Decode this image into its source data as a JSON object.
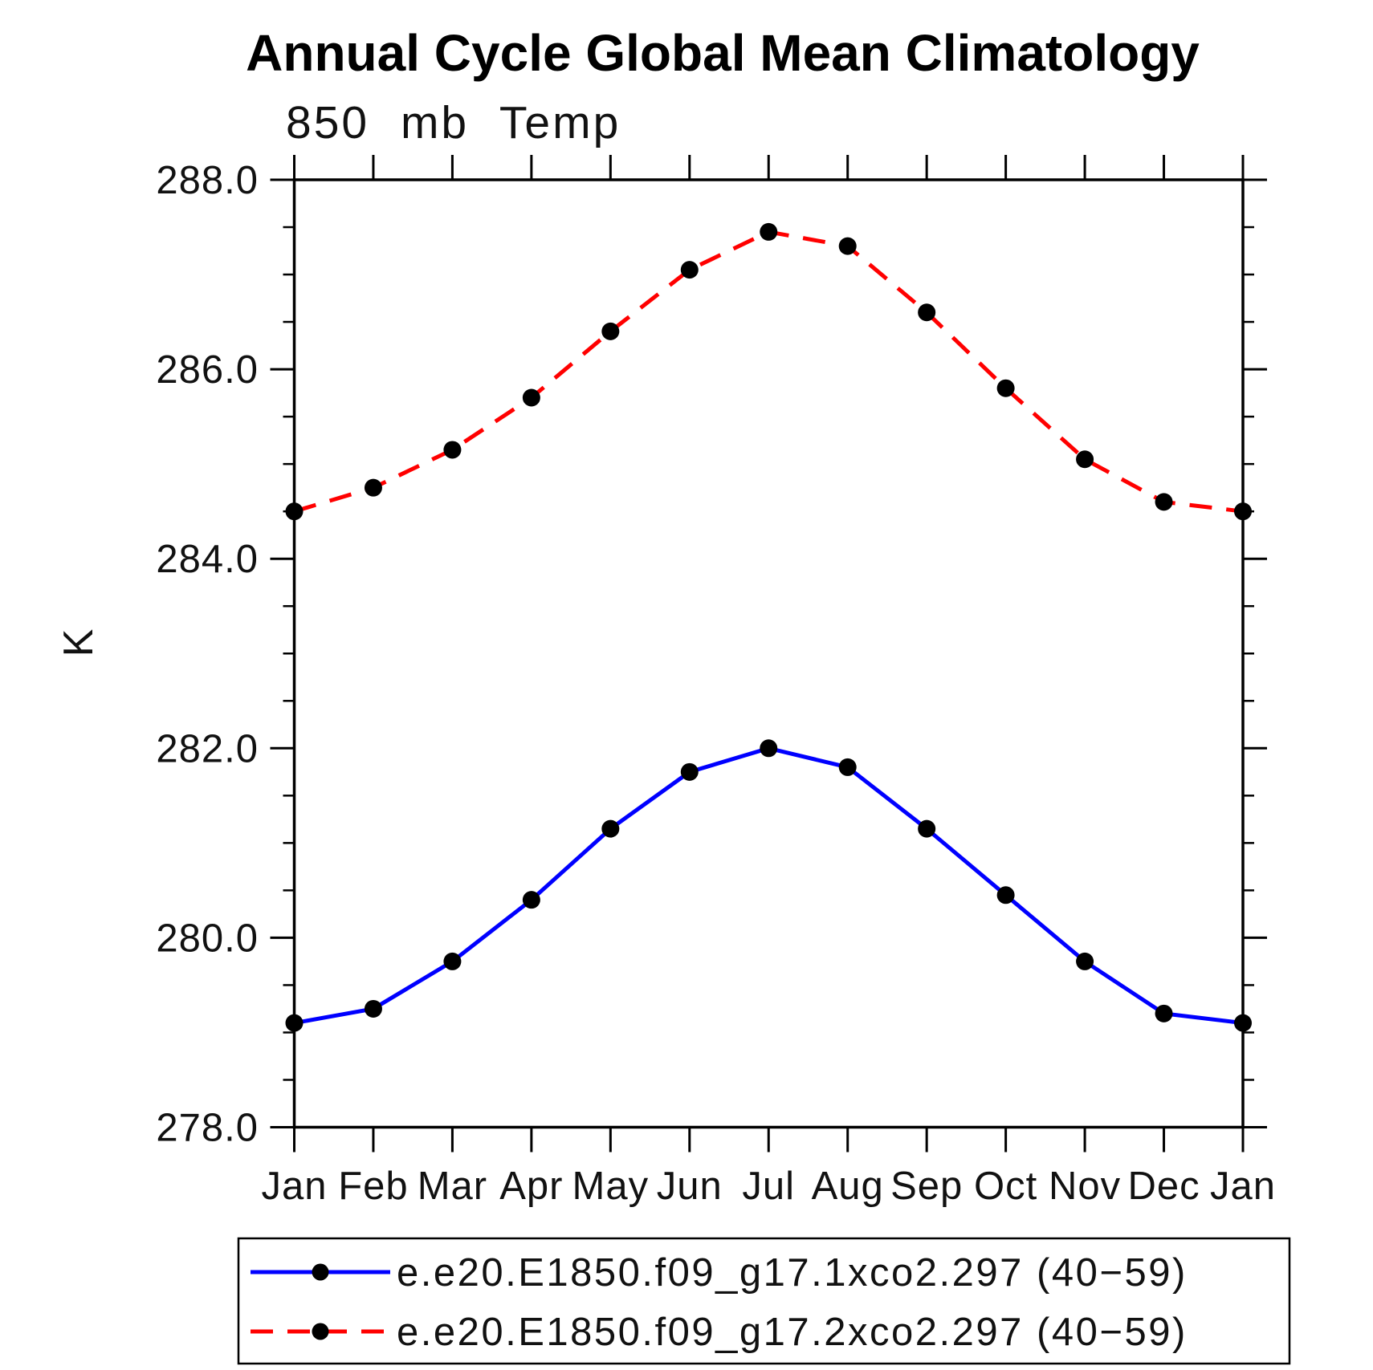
{
  "chart_data": {
    "type": "line",
    "title": "Annual Cycle Global Mean Climatology",
    "subtitle": "850 mb Temp",
    "ylabel": "K",
    "categories": [
      "Jan",
      "Feb",
      "Mar",
      "Apr",
      "May",
      "Jun",
      "Jul",
      "Aug",
      "Sep",
      "Oct",
      "Nov",
      "Dec",
      "Jan"
    ],
    "ylim": [
      278.0,
      288.0
    ],
    "ytick_major": 2.0,
    "ytick_minor": 0.5,
    "y_tick_labels": [
      "288.0",
      "286.0",
      "284.0",
      "282.0",
      "280.0",
      "278.0"
    ],
    "grid": false,
    "legend_position": "bottom",
    "axis_color": "#000000",
    "marker_color": "#000000",
    "series": [
      {
        "name": "e.e20.E1850.f09_g17.1xco2.297 (40−59)",
        "color": "#0000ff",
        "line_style": "solid",
        "marker": "circle",
        "marker_color": "#000000",
        "values": [
          279.1,
          279.25,
          279.75,
          280.4,
          281.15,
          281.75,
          282.0,
          281.8,
          281.15,
          280.45,
          279.75,
          279.2,
          279.1
        ]
      },
      {
        "name": "e.e20.E1850.f09_g17.2xco2.297 (40−59)",
        "color": "#ff0000",
        "line_style": "dashed",
        "marker": "circle",
        "marker_color": "#000000",
        "values": [
          284.5,
          284.75,
          285.15,
          285.7,
          286.4,
          287.05,
          287.45,
          287.3,
          286.6,
          285.8,
          285.05,
          284.6,
          284.5
        ]
      }
    ]
  }
}
